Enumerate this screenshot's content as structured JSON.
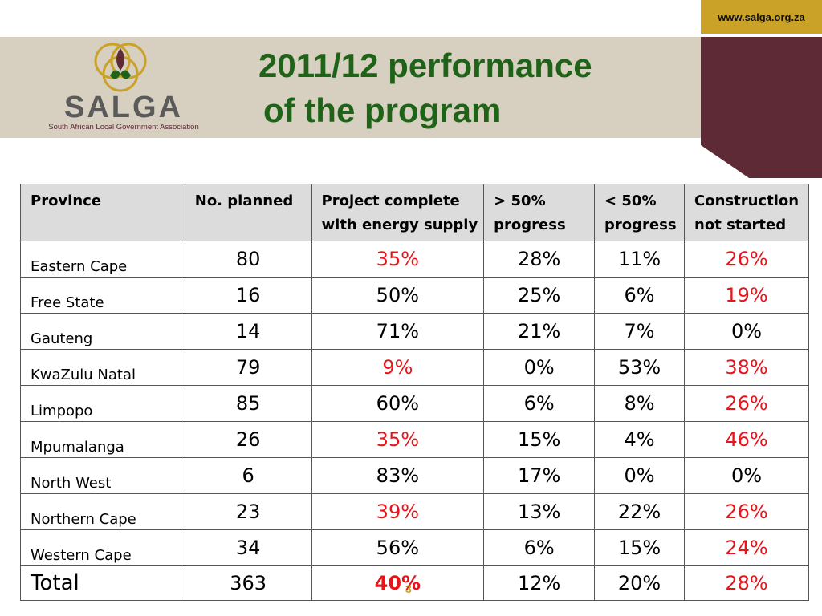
{
  "header": {
    "url": "www.salga.org.za",
    "title_line1": "2011/12 performance",
    "title_line2": "of the program"
  },
  "logo": {
    "name": "SALGA",
    "tagline": "South African Local Government Association"
  },
  "table": {
    "headers": {
      "province": "Province",
      "planned": "No. planned",
      "complete_1": "Project complete",
      "complete_2": "with energy supply",
      "gt50_1": "> 50%",
      "gt50_2": "progress",
      "lt50_1": "< 50%",
      "lt50_2": "progress",
      "notstarted_1": "Construction",
      "notstarted_2": "not started"
    },
    "rows": [
      {
        "province": "Eastern Cape",
        "planned": "80",
        "complete": "35%",
        "gt50": "28%",
        "lt50": "11%",
        "notstarted": "26%"
      },
      {
        "province": "Free State",
        "planned": "16",
        "complete": "50%",
        "gt50": "25%",
        "lt50": "6%",
        "notstarted": "19%"
      },
      {
        "province": "Gauteng",
        "planned": "14",
        "complete": "71%",
        "gt50": "21%",
        "lt50": "7%",
        "notstarted": "0%"
      },
      {
        "province": "KwaZulu Natal",
        "planned": "79",
        "complete": "9%",
        "gt50": "0%",
        "lt50": "53%",
        "notstarted": "38%"
      },
      {
        "province": "Limpopo",
        "planned": "85",
        "complete": "60%",
        "gt50": "6%",
        "lt50": "8%",
        "notstarted": "26%"
      },
      {
        "province": "Mpumalanga",
        "planned": "26",
        "complete": "35%",
        "gt50": "15%",
        "lt50": "4%",
        "notstarted": "46%"
      },
      {
        "province": "North West",
        "planned": "6",
        "complete": "83%",
        "gt50": "17%",
        "lt50": "0%",
        "notstarted": "0%"
      },
      {
        "province": "Northern Cape",
        "planned": "23",
        "complete": "39%",
        "gt50": "13%",
        "lt50": "22%",
        "notstarted": "26%"
      },
      {
        "province": "Western Cape",
        "planned": "34",
        "complete": "56%",
        "gt50": "6%",
        "lt50": "15%",
        "notstarted": "24%"
      }
    ],
    "total": {
      "province": "Total",
      "planned": "363",
      "complete": "40%",
      "gt50": "12%",
      "lt50": "20%",
      "notstarted": "28%"
    }
  },
  "page_number": "3",
  "colors": {
    "title_green": "#1f6318",
    "highlight_red": "#e8141c",
    "gold": "#c9a227",
    "maroon": "#5e2a36",
    "banner_beige": "#d7d0c1"
  }
}
